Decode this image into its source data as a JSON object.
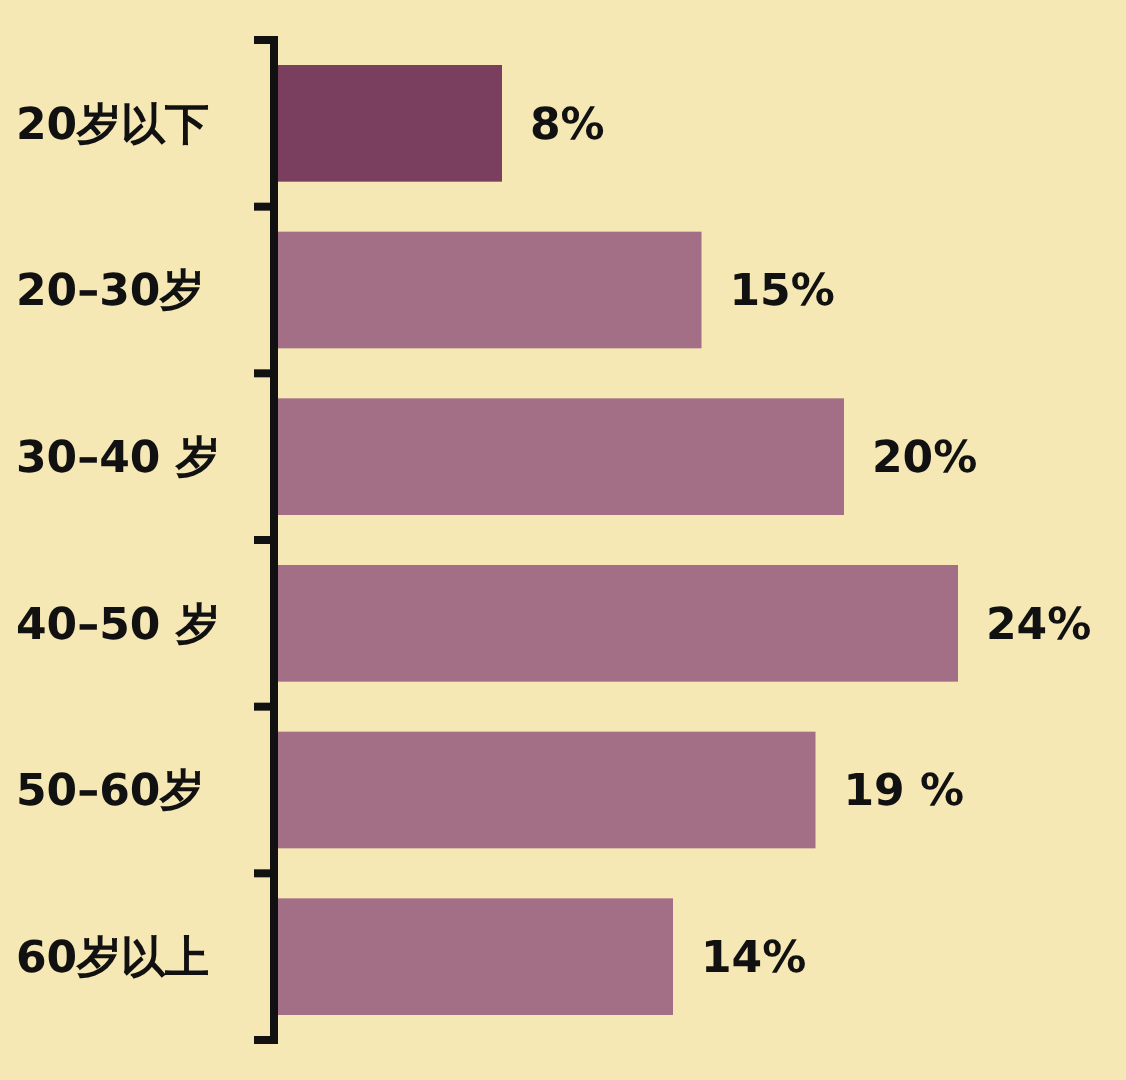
{
  "chart_data": {
    "type": "bar",
    "orientation": "horizontal",
    "categories": [
      "20岁以下",
      "20–30岁",
      "30–40 岁",
      "40–50 岁",
      "50–60岁",
      "60岁以上"
    ],
    "values": [
      8,
      15,
      20,
      24,
      19,
      14
    ],
    "colors": [
      "#7a3f5e",
      "#a36f86",
      "#a36f86",
      "#a36f86",
      "#a36f86",
      "#a36f86"
    ],
    "value_labels": [
      "8%",
      "15%",
      "20%",
      "24%",
      "19 %",
      "14%"
    ]
  }
}
